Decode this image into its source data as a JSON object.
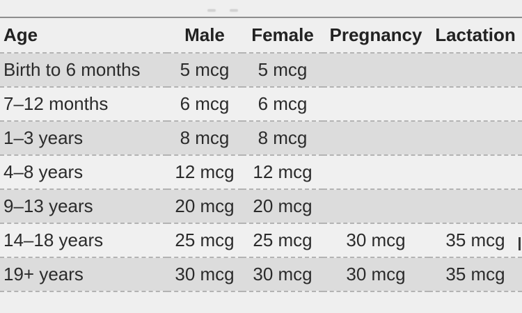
{
  "table": {
    "columns": [
      {
        "key": "age",
        "label": "Age"
      },
      {
        "key": "male",
        "label": "Male"
      },
      {
        "key": "female",
        "label": "Female"
      },
      {
        "key": "pregnancy",
        "label": "Pregnancy"
      },
      {
        "key": "lactation",
        "label": "Lactation"
      }
    ],
    "unit": "mcg",
    "rows": [
      {
        "age": "Birth to 6 months",
        "male": "5 mcg",
        "female": "5 mcg",
        "pregnancy": "",
        "lactation": ""
      },
      {
        "age": "7–12 months",
        "male": "6 mcg",
        "female": "6 mcg",
        "pregnancy": "",
        "lactation": ""
      },
      {
        "age": "1–3 years",
        "male": "8 mcg",
        "female": "8 mcg",
        "pregnancy": "",
        "lactation": ""
      },
      {
        "age": "4–8 years",
        "male": "12 mcg",
        "female": "12 mcg",
        "pregnancy": "",
        "lactation": ""
      },
      {
        "age": "9–13 years",
        "male": "20 mcg",
        "female": "20 mcg",
        "pregnancy": "",
        "lactation": ""
      },
      {
        "age": "14–18 years",
        "male": "25 mcg",
        "female": "25 mcg",
        "pregnancy": "30 mcg",
        "lactation": "35 mcg"
      },
      {
        "age": "19+ years",
        "male": "30 mcg",
        "female": "30 mcg",
        "pregnancy": "30 mcg",
        "lactation": "35 mcg"
      }
    ]
  },
  "colors": {
    "page_background": "#efefef",
    "row_stripe": "#dcdcdc",
    "row_plain": "#f0f0f0",
    "dashed_divider": "#b3b3b3",
    "top_rule": "#8d8d8d",
    "text": "#2b2b2b",
    "header_text": "#222222"
  }
}
